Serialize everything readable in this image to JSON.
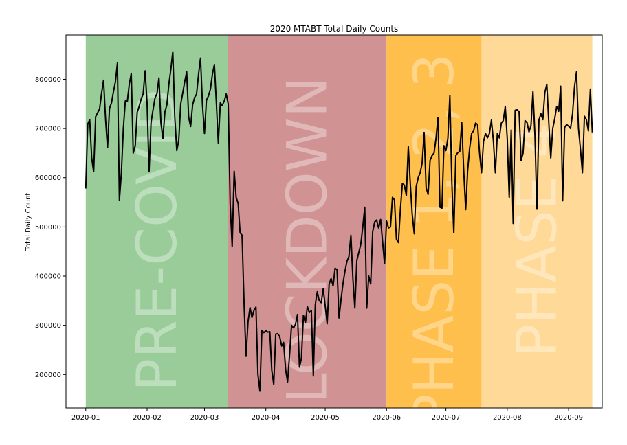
{
  "chart_data": {
    "type": "line",
    "title": "2020 MTABT Total Daily Counts",
    "ylabel": "Total Daily Count",
    "xlabel": "",
    "xlim": [
      "2019-12-22",
      "2020-09-18"
    ],
    "ylim": [
      132000,
      890000
    ],
    "y_ticks": [
      200000,
      300000,
      400000,
      500000,
      600000,
      700000,
      800000
    ],
    "x_ticks": [
      {
        "date": "2020-01-01",
        "label": "2020-01"
      },
      {
        "date": "2020-02-01",
        "label": "2020-02"
      },
      {
        "date": "2020-03-01",
        "label": "2020-03"
      },
      {
        "date": "2020-04-01",
        "label": "2020-04"
      },
      {
        "date": "2020-05-01",
        "label": "2020-05"
      },
      {
        "date": "2020-06-01",
        "label": "2020-06"
      },
      {
        "date": "2020-07-01",
        "label": "2020-07"
      },
      {
        "date": "2020-08-01",
        "label": "2020-08"
      },
      {
        "date": "2020-09-01",
        "label": "2020-09"
      }
    ],
    "grid": false,
    "phases": [
      {
        "label": "PRE-COVID",
        "start": "2020-01-01",
        "end": "2020-03-13",
        "color": "#99cc99"
      },
      {
        "label": "LOCKDOWN",
        "start": "2020-03-13",
        "end": "2020-06-01",
        "color": "#d09292"
      },
      {
        "label": "PHASE 1, 2, 3",
        "start": "2020-06-01",
        "end": "2020-07-19",
        "color": "#ffbf4c"
      },
      {
        "label": "PHASE 4",
        "start": "2020-07-19",
        "end": "2020-09-13",
        "color": "#ffd997"
      }
    ],
    "series": [
      {
        "color": "#000000",
        "start_date": "2020-01-01",
        "values": [
          578000,
          709000,
          718000,
          640000,
          612000,
          724000,
          732000,
          740000,
          772000,
          798000,
          720000,
          661000,
          741000,
          752000,
          775000,
          795000,
          833000,
          554000,
          610000,
          700000,
          756000,
          755000,
          790000,
          812000,
          650000,
          665000,
          733000,
          745000,
          760000,
          770000,
          817000,
          751000,
          613000,
          712000,
          738000,
          762000,
          771000,
          803000,
          711000,
          680000,
          734000,
          748000,
          790000,
          820000,
          856000,
          723000,
          655000,
          676000,
          750000,
          772000,
          795000,
          815000,
          723000,
          704000,
          748000,
          763000,
          770000,
          810000,
          843000,
          747000,
          690000,
          758000,
          766000,
          780000,
          810000,
          830000,
          752000,
          670000,
          752000,
          747000,
          756000,
          770000,
          750000,
          545000,
          460000,
          613000,
          560000,
          548000,
          488000,
          483000,
          345000,
          237000,
          307000,
          336000,
          316000,
          330000,
          337000,
          200000,
          166000,
          290000,
          285000,
          289000,
          286000,
          287000,
          209000,
          180000,
          282000,
          283000,
          277000,
          258000,
          265000,
          210000,
          185000,
          240000,
          300000,
          295000,
          302000,
          322000,
          215000,
          233000,
          320000,
          305000,
          338000,
          326000,
          330000,
          197000,
          342000,
          368000,
          350000,
          346000,
          374000,
          340000,
          303000,
          384000,
          395000,
          380000,
          416000,
          413000,
          315000,
          352000,
          385000,
          410000,
          430000,
          440000,
          483000,
          395000,
          335000,
          432000,
          448000,
          465000,
          500000,
          540000,
          335000,
          400000,
          384000,
          490000,
          510000,
          514000,
          498000,
          515000,
          470000,
          425000,
          512000,
          498000,
          500000,
          560000,
          555000,
          475000,
          468000,
          535000,
          588000,
          585000,
          564000,
          663000,
          588000,
          525000,
          486000,
          582000,
          600000,
          610000,
          630000,
          692000,
          580000,
          566000,
          635000,
          645000,
          650000,
          680000,
          722000,
          540000,
          538000,
          665000,
          655000,
          680000,
          767000,
          590000,
          488000,
          645000,
          651000,
          653000,
          712000,
          615000,
          535000,
          615000,
          660000,
          690000,
          695000,
          711000,
          708000,
          650000,
          610000,
          673000,
          690000,
          681000,
          690000,
          717000,
          675000,
          610000,
          690000,
          681000,
          711000,
          716000,
          745000,
          680000,
          560000,
          697000,
          507000,
          737000,
          738000,
          734000,
          635000,
          650000,
          716000,
          712000,
          693000,
          706000,
          775000,
          686000,
          536000,
          717000,
          730000,
          718000,
          773000,
          790000,
          712000,
          640000,
          700000,
          720000,
          745000,
          735000,
          786000,
          553000,
          702000,
          708000,
          705000,
          700000,
          730000,
          785000,
          815000,
          700000,
          658000,
          610000,
          725000,
          718000,
          695000,
          780000,
          692000
        ]
      }
    ]
  }
}
